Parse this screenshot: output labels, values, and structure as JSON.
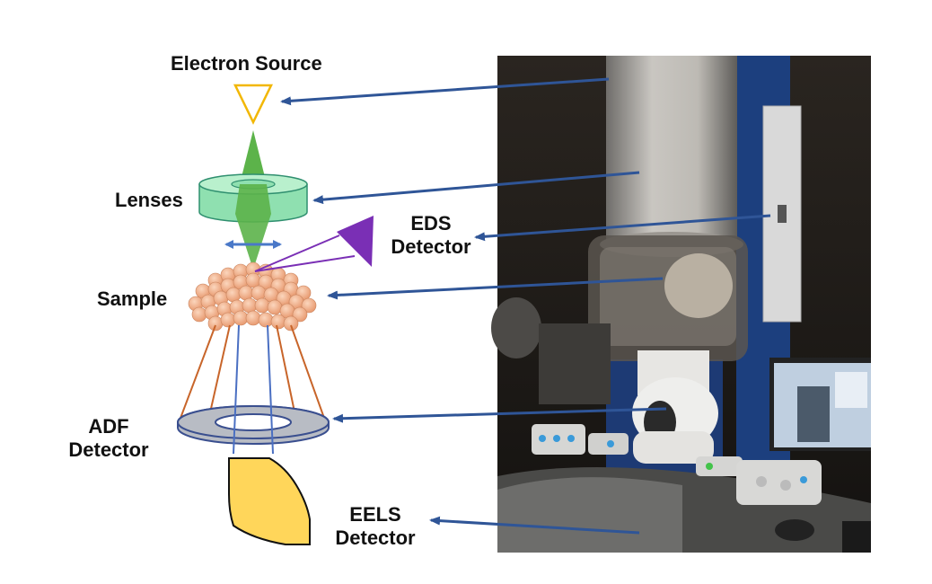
{
  "labels": {
    "electron_source": "Electron Source",
    "lenses": "Lenses",
    "eds_line1": "EDS",
    "eds_line2": "Detector",
    "sample": "Sample",
    "adf_line1": "ADF",
    "adf_line2": "Detector",
    "eels_line1": "EELS",
    "eels_line2": "Detector"
  },
  "colors": {
    "source": "#f2b705",
    "beam": "#5cb34a",
    "lens_fill": "#8fe0b0",
    "eds": "#7a2fb5",
    "sample": "#f3b48f",
    "cone_orange": "#c8652a",
    "cone_blue": "#4a6fc2",
    "adf_ring": "#b8bcc4",
    "eels": "#ffd65a",
    "arrow": "#2f5597"
  }
}
